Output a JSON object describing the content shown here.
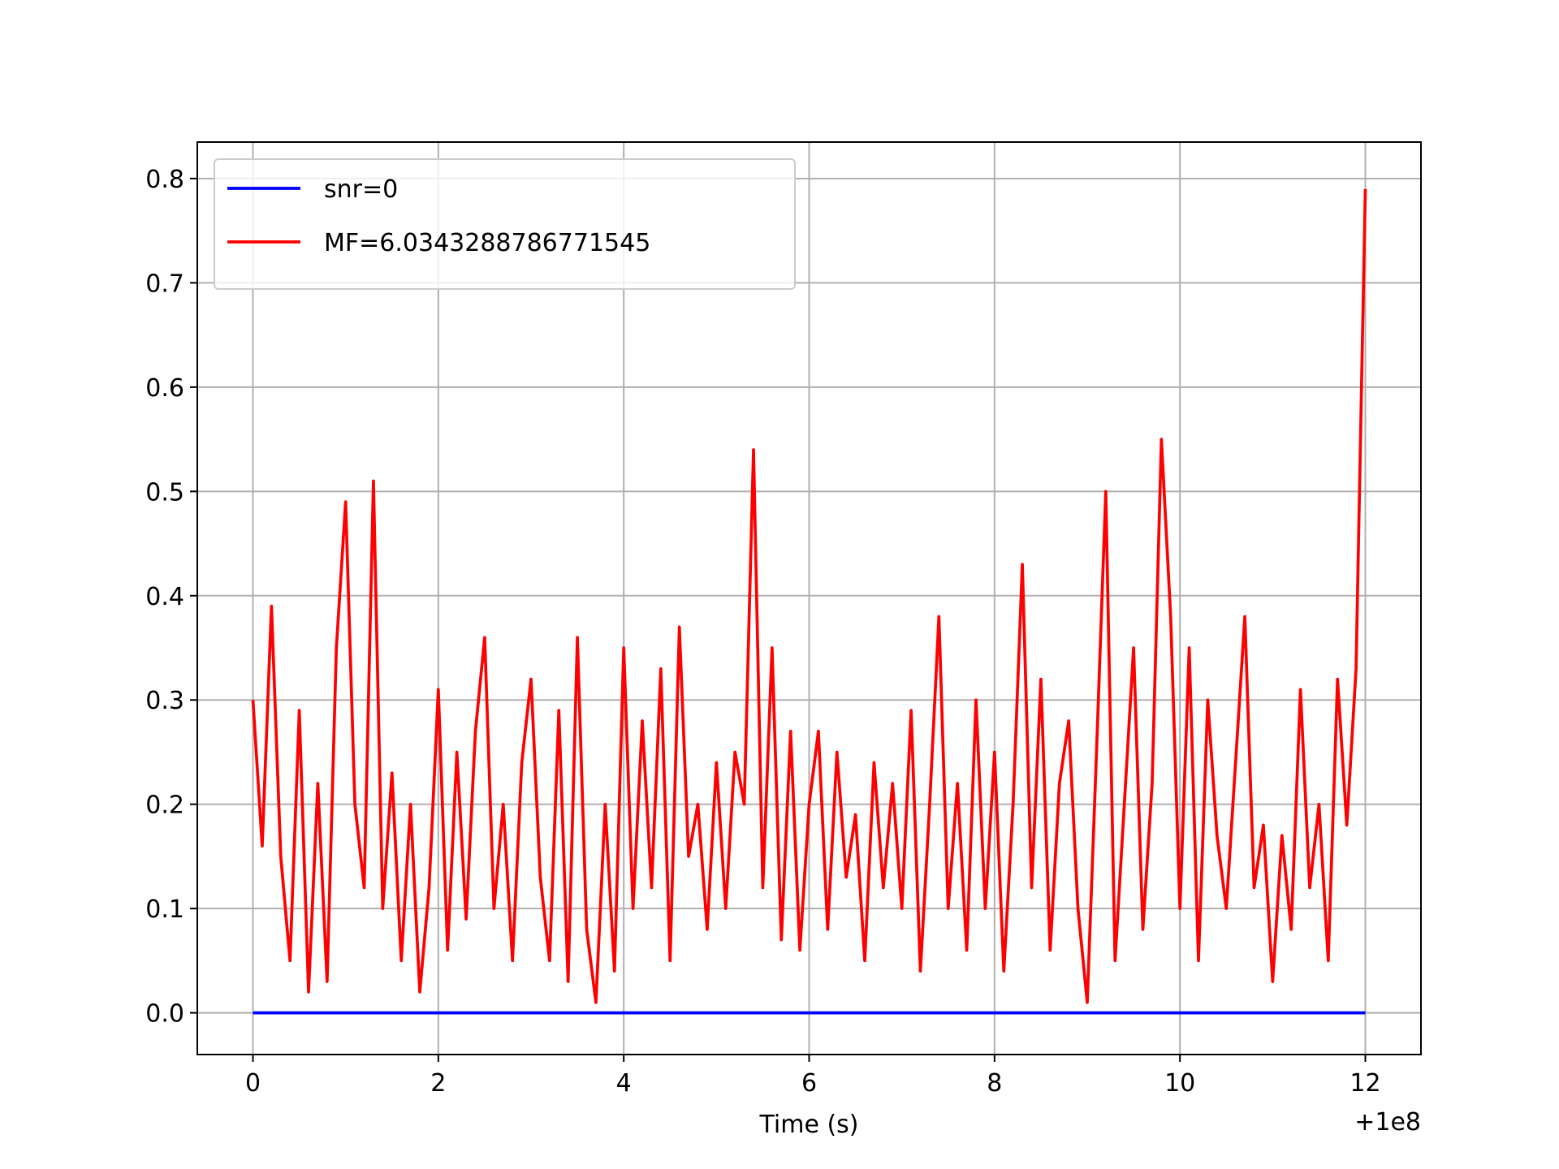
{
  "chart_data": {
    "type": "line",
    "x_label": "Time (s)",
    "x_offset_label": "+1e8",
    "xlim": [
      -0.6,
      12.6
    ],
    "xticks": [
      0,
      2,
      4,
      6,
      8,
      10,
      12
    ],
    "ylim": [
      -0.04,
      0.835
    ],
    "yticks": [
      {
        "value": 0,
        "label": "0.0"
      },
      0.1,
      0.2,
      0.3,
      0.4,
      0.5,
      0.6,
      0.7,
      0.8
    ],
    "grid": true,
    "legend": "upper left",
    "series": [
      {
        "name": "snr=0",
        "color": "#0000ff",
        "x": [
          0,
          12
        ],
        "values": [
          0,
          0
        ]
      },
      {
        "name": "MF=6.034328878677154​5",
        "color": "#ff0000",
        "x": [
          0,
          0.1,
          0.2,
          0.3,
          0.4,
          0.5,
          0.6,
          0.7,
          0.8,
          0.9,
          1,
          1.1,
          1.2,
          1.3,
          1.4,
          1.5,
          1.6,
          1.7,
          1.8,
          1.9,
          2,
          2.1,
          2.2,
          2.3,
          2.4,
          2.5,
          2.6,
          2.7,
          2.8,
          2.9,
          3,
          3.1,
          3.2,
          3.3,
          3.4,
          3.5,
          3.6,
          3.7,
          3.8,
          3.9,
          4,
          4.1,
          4.2,
          4.3,
          4.4,
          4.5,
          4.6,
          4.7,
          4.8,
          4.9,
          5,
          5.1,
          5.2,
          5.3,
          5.4,
          5.5,
          5.6,
          5.7,
          5.8,
          5.9,
          6,
          6.1,
          6.2,
          6.3,
          6.4,
          6.5,
          6.6,
          6.7,
          6.8,
          6.9,
          7,
          7.1,
          7.2,
          7.3,
          7.4,
          7.5,
          7.6,
          7.7,
          7.8,
          7.9,
          8,
          8.1,
          8.2,
          8.3,
          8.4,
          8.5,
          8.6,
          8.7,
          8.8,
          8.9,
          9,
          9.1,
          9.2,
          9.3,
          9.4,
          9.5,
          9.6,
          9.7,
          9.8,
          9.9,
          10,
          10.1,
          10.2,
          10.3,
          10.4,
          10.5,
          10.6,
          10.7,
          10.8,
          10.9,
          11,
          11.1,
          11.2,
          11.3,
          11.4,
          11.5,
          11.6,
          11.7,
          11.8,
          11.9,
          12
        ],
        "values": [
          0.3,
          0.16,
          0.39,
          0.15,
          0.05,
          0.29,
          0.02,
          0.22,
          0.03,
          0.35,
          0.49,
          0.2,
          0.12,
          0.51,
          0.1,
          0.23,
          0.05,
          0.2,
          0.02,
          0.12,
          0.31,
          0.06,
          0.25,
          0.09,
          0.27,
          0.36,
          0.1,
          0.2,
          0.05,
          0.24,
          0.32,
          0.13,
          0.05,
          0.29,
          0.03,
          0.36,
          0.08,
          0.01,
          0.2,
          0.04,
          0.35,
          0.1,
          0.28,
          0.12,
          0.33,
          0.05,
          0.37,
          0.15,
          0.2,
          0.08,
          0.24,
          0.1,
          0.25,
          0.2,
          0.54,
          0.12,
          0.35,
          0.07,
          0.27,
          0.06,
          0.2,
          0.27,
          0.08,
          0.25,
          0.13,
          0.19,
          0.05,
          0.24,
          0.12,
          0.22,
          0.1,
          0.29,
          0.04,
          0.2,
          0.38,
          0.1,
          0.22,
          0.06,
          0.3,
          0.1,
          0.25,
          0.04,
          0.2,
          0.43,
          0.12,
          0.32,
          0.06,
          0.22,
          0.28,
          0.1,
          0.01,
          0.25,
          0.5,
          0.05,
          0.2,
          0.35,
          0.08,
          0.22,
          0.55,
          0.38,
          0.1,
          0.35,
          0.05,
          0.3,
          0.17,
          0.1,
          0.24,
          0.38,
          0.12,
          0.18,
          0.03,
          0.17,
          0.08,
          0.31,
          0.12,
          0.2,
          0.05,
          0.32,
          0.18,
          0.33,
          0.79
        ]
      }
    ]
  }
}
